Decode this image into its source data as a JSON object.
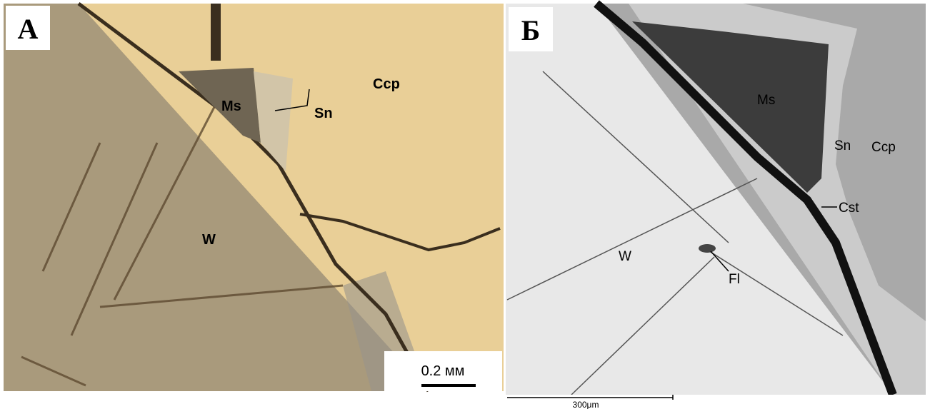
{
  "panels": [
    {
      "label": "А",
      "annotations": [
        "Ms",
        "Sn",
        "Ccp",
        "W"
      ],
      "scale_bar": "0.2 мм"
    },
    {
      "label": "Б",
      "annotations": [
        "Ms",
        "Sn",
        "Ccp",
        "Cst",
        "W",
        "Fl"
      ],
      "scale_bar": "300μm"
    }
  ]
}
